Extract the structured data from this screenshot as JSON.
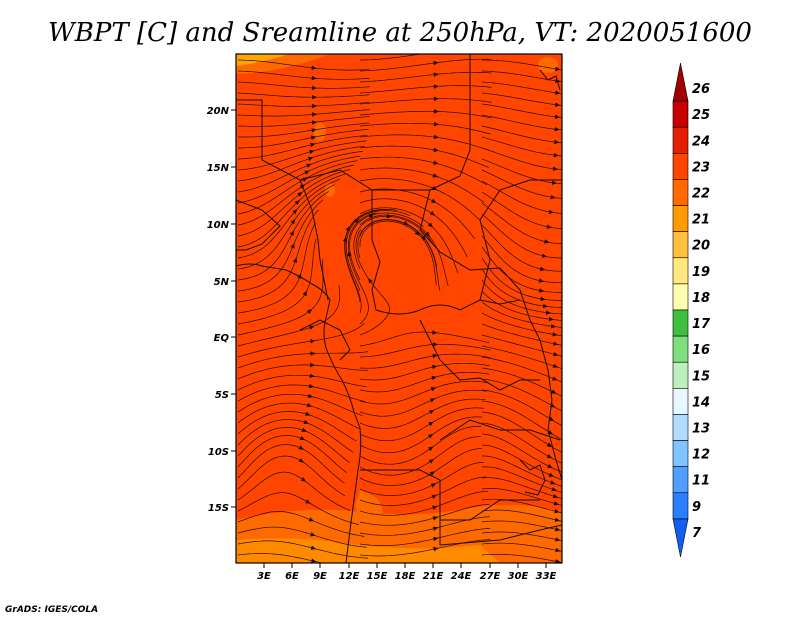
{
  "title": "WBPT [C] and Sreamline at 250hPa, VT: 2020051600",
  "credit": "GrADS: IGES/COLA",
  "map": {
    "lat_ticks": [
      "20N",
      "15N",
      "10N",
      "5N",
      "EQ",
      "5S",
      "10S",
      "15S"
    ],
    "lon_ticks": [
      "3E",
      "6E",
      "9E",
      "12E",
      "15E",
      "18E",
      "21E",
      "24E",
      "27E",
      "30E",
      "33E"
    ],
    "dominant_fill": "#ff4500",
    "secondary_fill": "#ff6a00"
  },
  "colorbar": {
    "levels": [
      "26",
      "25",
      "24",
      "23",
      "22",
      "21",
      "20",
      "19",
      "18",
      "17",
      "16",
      "15",
      "14",
      "13",
      "12",
      "11",
      "9",
      "7"
    ],
    "colors": [
      "#a50000",
      "#c80000",
      "#e61e00",
      "#ff4500",
      "#ff6a00",
      "#ff9a00",
      "#ffbf40",
      "#ffe880",
      "#ffffb0",
      "#3fbf3f",
      "#7fdf7f",
      "#bfefbf",
      "#e6f7ff",
      "#b0dcff",
      "#80c4ff",
      "#509fff",
      "#2a7fff",
      "#1060f0"
    ]
  }
}
